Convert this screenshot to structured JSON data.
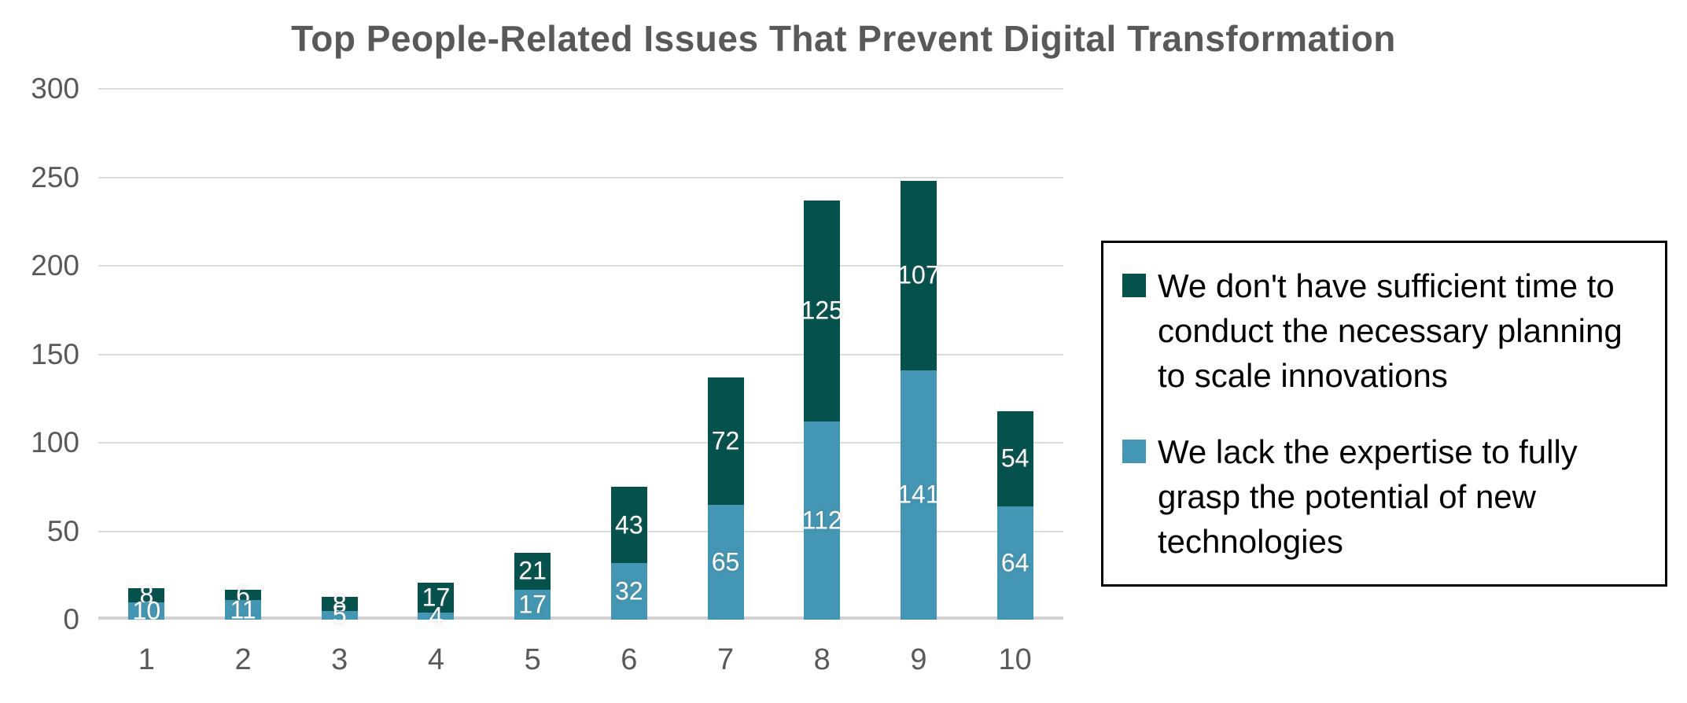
{
  "chart_data": {
    "type": "bar",
    "stacked": true,
    "title": "Top People-Related Issues That Prevent Digital Transformation",
    "categories": [
      "1",
      "2",
      "3",
      "4",
      "5",
      "6",
      "7",
      "8",
      "9",
      "10"
    ],
    "series": [
      {
        "name": "We don't have sufficient time to conduct the necessary planning to scale innovations",
        "color": "#05514C",
        "position_in_stack": "top",
        "values": [
          8,
          6,
          8,
          17,
          21,
          43,
          72,
          125,
          107,
          54
        ],
        "legend_lines": [
          "We don't have sufficient time to",
          "conduct the necessary planning",
          "to scale innovations"
        ]
      },
      {
        "name": "We lack the expertise to fully grasp the potential of new technologies",
        "color": "#4397B4",
        "position_in_stack": "bottom",
        "values": [
          10,
          11,
          5,
          4,
          17,
          32,
          65,
          112,
          141,
          64
        ],
        "legend_lines": [
          "We lack the expertise to fully",
          "grasp the potential of new",
          "technologies"
        ]
      }
    ],
    "ylim": [
      0,
      300
    ],
    "yticks": [
      0,
      50,
      100,
      150,
      200,
      250,
      300
    ],
    "grid": true,
    "legend_position": "right",
    "data_labels": {
      "position": "center",
      "color": "#FFFFFF"
    }
  },
  "style": {
    "background": "#FFFFFF",
    "title_color": "#595959",
    "axis_text_color": "#595959",
    "gridline_color": "#DCDCDC",
    "axis_line_color": "#D2D2D2",
    "legend_border_color": "#000000",
    "legend_text_color": "#000000",
    "data_label_color": "#FFFFFF"
  }
}
